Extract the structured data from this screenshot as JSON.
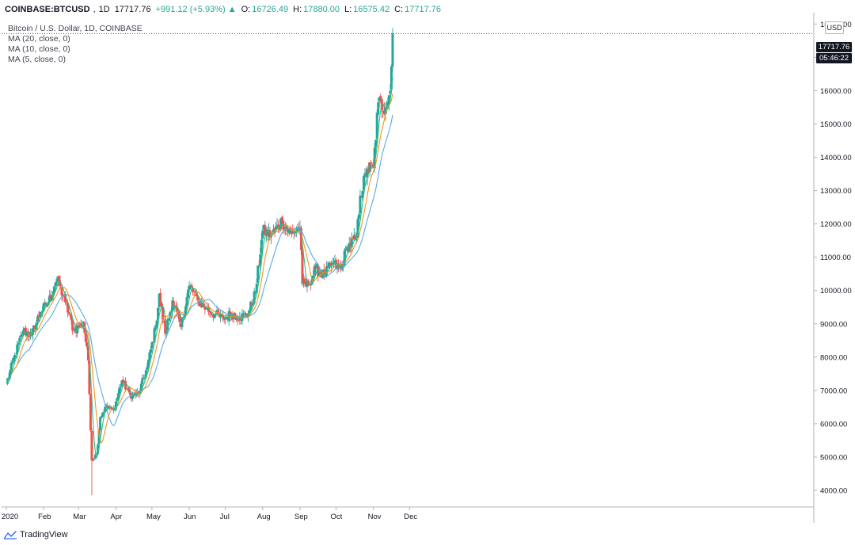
{
  "header": {
    "symbol": "COINBASE:BTCUSD",
    "timeframe": "1D",
    "last": "17717.76",
    "change": "+991.12 (+5.93%)",
    "open_label": "O:",
    "open": "16726.49",
    "high_label": "H:",
    "high": "17880.00",
    "low_label": "L:",
    "low": "16575.42",
    "close_label": "C:",
    "close": "17717.76"
  },
  "legend": {
    "title": "Bitcoin / U.S. Dollar, 1D, COINBASE",
    "ma20": "MA (20, close, 0)",
    "ma10": "MA (10, close, 0)",
    "ma5": "MA (5, close, 0)"
  },
  "price_axis": {
    "currency": "USD",
    "last_price_tag": "17717.76",
    "countdown_tag": "05:46:22"
  },
  "footer": {
    "brand": "TradingView"
  },
  "colors": {
    "up": "#26a69a",
    "down": "#ef5350",
    "ma20": "#5aa9e6",
    "ma10": "#f7941d",
    "ma5": "#2ebd85",
    "grid": "#e0e3eb"
  },
  "chart_data": {
    "type": "candlestick",
    "ylim": [
      3500,
      18200
    ],
    "yticks": [
      "4000.00",
      "5000.00",
      "6000.00",
      "7000.00",
      "8000.00",
      "9000.00",
      "10000.00",
      "11000.00",
      "12000.00",
      "13000.00",
      "14000.00",
      "15000.00",
      "16000.00",
      "17000.00",
      "18000.00"
    ],
    "xticks": [
      "2020",
      "Feb",
      "Mar",
      "Apr",
      "May",
      "Jun",
      "Jul",
      "Aug",
      "Sep",
      "Oct",
      "Nov",
      "Dec"
    ],
    "grid": false,
    "close_anchors": [
      [
        "2020-01-01",
        7200
      ],
      [
        "2020-01-08",
        8050
      ],
      [
        "2020-01-15",
        8800
      ],
      [
        "2020-01-22",
        8650
      ],
      [
        "2020-01-29",
        9350
      ],
      [
        "2020-02-05",
        9650
      ],
      [
        "2020-02-12",
        10350
      ],
      [
        "2020-02-19",
        9650
      ],
      [
        "2020-02-26",
        8800
      ],
      [
        "2020-03-05",
        9050
      ],
      [
        "2020-03-09",
        7900
      ],
      [
        "2020-03-12",
        4900
      ],
      [
        "2020-03-16",
        5100
      ],
      [
        "2020-03-19",
        6200
      ],
      [
        "2020-03-23",
        6500
      ],
      [
        "2020-03-30",
        6400
      ],
      [
        "2020-04-06",
        7300
      ],
      [
        "2020-04-13",
        6850
      ],
      [
        "2020-04-20",
        6900
      ],
      [
        "2020-04-27",
        7700
      ],
      [
        "2020-05-04",
        8900
      ],
      [
        "2020-05-07",
        9900
      ],
      [
        "2020-05-12",
        8700
      ],
      [
        "2020-05-18",
        9700
      ],
      [
        "2020-05-25",
        8900
      ],
      [
        "2020-06-01",
        10150
      ],
      [
        "2020-06-08",
        9700
      ],
      [
        "2020-06-15",
        9450
      ],
      [
        "2020-06-22",
        9300
      ],
      [
        "2020-06-29",
        9150
      ],
      [
        "2020-07-06",
        9300
      ],
      [
        "2020-07-13",
        9200
      ],
      [
        "2020-07-20",
        9300
      ],
      [
        "2020-07-26",
        9950
      ],
      [
        "2020-08-01",
        11800
      ],
      [
        "2020-08-08",
        11650
      ],
      [
        "2020-08-17",
        12100
      ],
      [
        "2020-08-24",
        11700
      ],
      [
        "2020-09-01",
        11900
      ],
      [
        "2020-09-03",
        10200
      ],
      [
        "2020-09-08",
        10150
      ],
      [
        "2020-09-14",
        10650
      ],
      [
        "2020-09-21",
        10450
      ],
      [
        "2020-09-28",
        10800
      ],
      [
        "2020-10-05",
        10650
      ],
      [
        "2020-10-10",
        11300
      ],
      [
        "2020-10-18",
        11550
      ],
      [
        "2020-10-21",
        12850
      ],
      [
        "2020-10-27",
        13650
      ],
      [
        "2020-11-01",
        13700
      ],
      [
        "2020-11-05",
        15650
      ],
      [
        "2020-11-11",
        15500
      ],
      [
        "2020-11-15",
        16000
      ],
      [
        "2020-11-16",
        16730
      ],
      [
        "2020-11-17",
        17717.76
      ]
    ],
    "last_candle": {
      "date": "2020-11-17",
      "open": 16726.49,
      "high": 17880.0,
      "low": 16575.42,
      "close": 17717.76
    },
    "series": [
      {
        "name": "MA (20, close, 0)",
        "period": 20
      },
      {
        "name": "MA (10, close, 0)",
        "period": 10
      },
      {
        "name": "MA (5, close, 0)",
        "period": 5
      }
    ]
  }
}
